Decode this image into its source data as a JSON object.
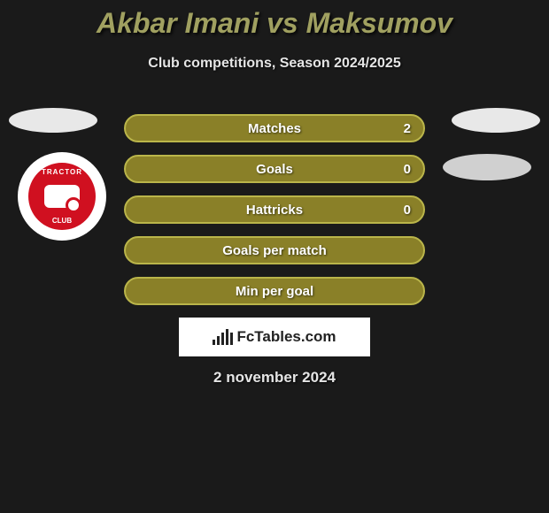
{
  "title": "Akbar Imani vs Maksumov",
  "subtitle": "Club competitions, Season 2024/2025",
  "date": "2 november 2024",
  "fctables_label": "FcTables.com",
  "badge": {
    "top_text": "TRACTOR",
    "bottom_text": "CLUB",
    "inner_bg": "#d01020"
  },
  "stats": [
    {
      "label": "Matches",
      "value": "2",
      "bg": "#8a8028",
      "border": "#bab54a"
    },
    {
      "label": "Goals",
      "value": "0",
      "bg": "#8a8028",
      "border": "#bab54a"
    },
    {
      "label": "Hattricks",
      "value": "0",
      "bg": "#8a8028",
      "border": "#bab54a"
    },
    {
      "label": "Goals per match",
      "value": "",
      "bg": "#8a8028",
      "border": "#bab54a"
    },
    {
      "label": "Min per goal",
      "value": "",
      "bg": "#8a8028",
      "border": "#bab54a"
    }
  ],
  "colors": {
    "page_bg": "#1a1a1a",
    "title_color": "#a0a060",
    "text_color": "#e5e5e5",
    "ellipse_bg": "#e8e8e8"
  },
  "bars": [
    6,
    10,
    14,
    18,
    14
  ]
}
